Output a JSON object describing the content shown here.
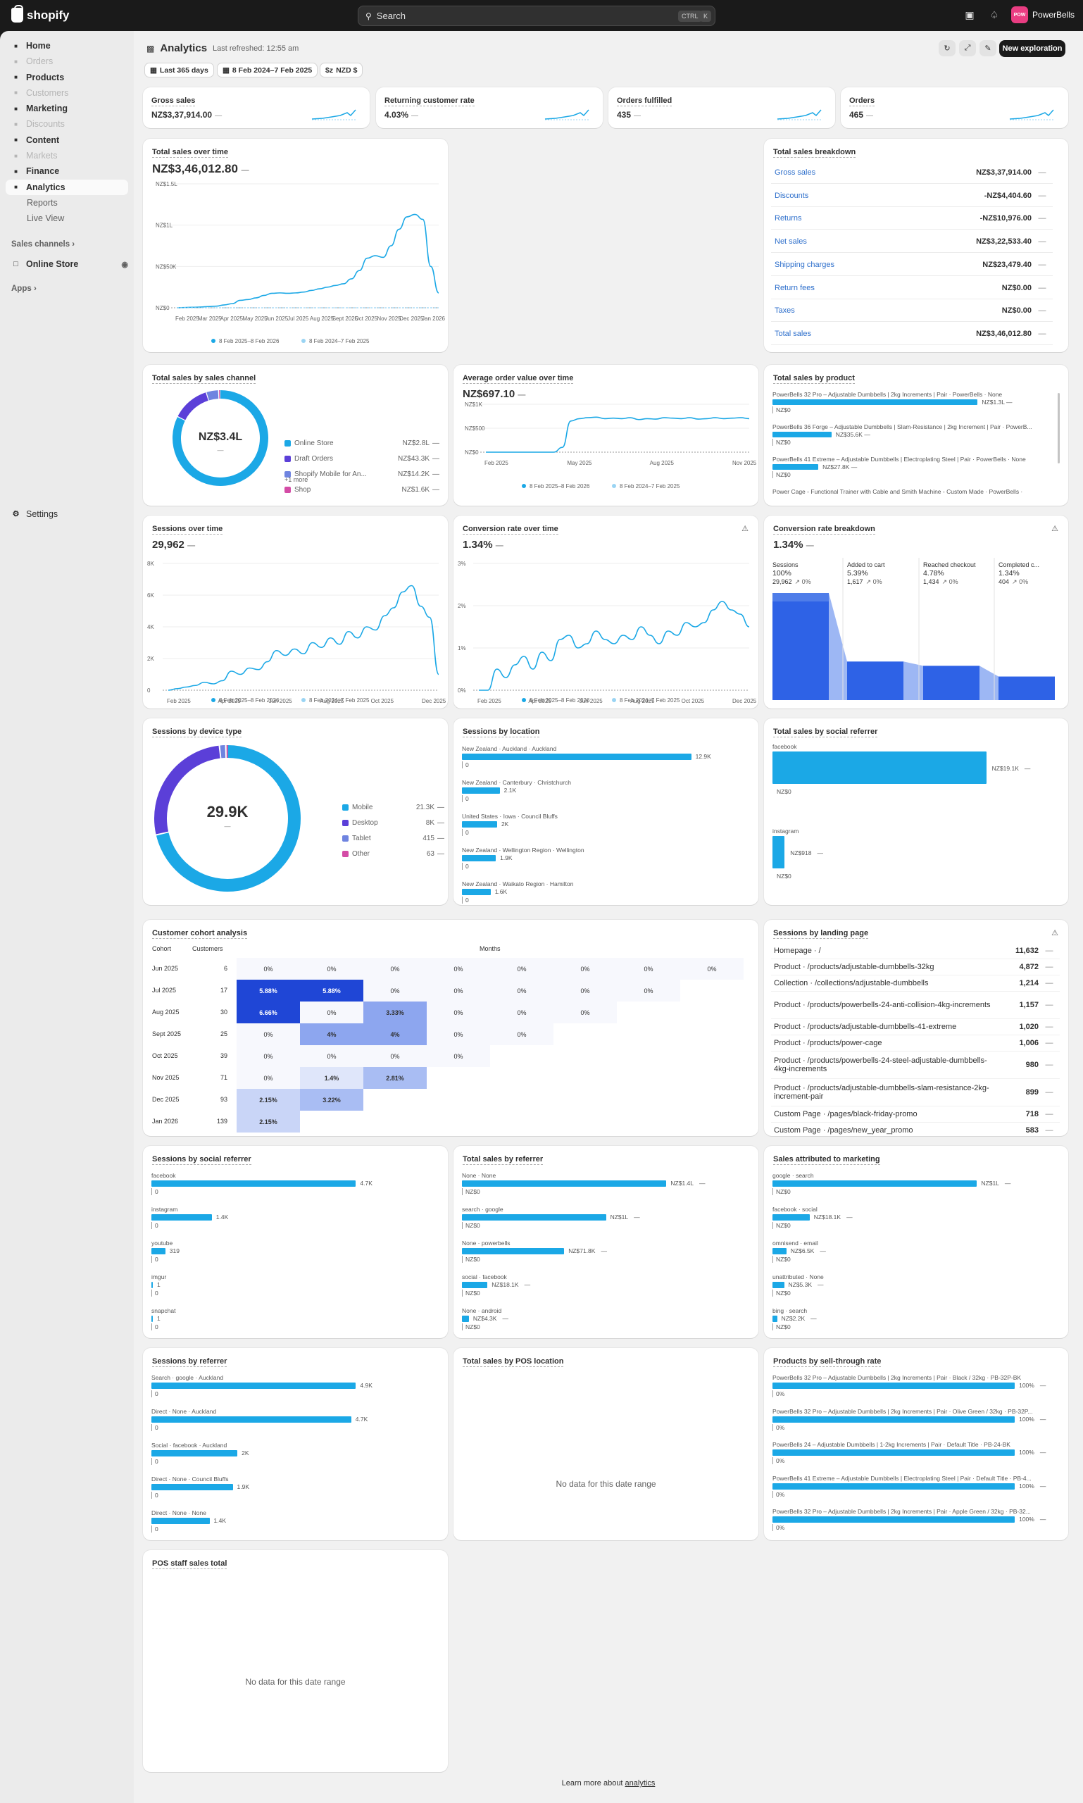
{
  "topbar": {
    "brand": "shopify",
    "search_placeholder": "Search",
    "kbd1": "CTRL",
    "kbd2": "K",
    "store_initials": "POW",
    "store_name": "PowerBells"
  },
  "sidebar": {
    "items": [
      {
        "label": "Home",
        "icon": "home-icon",
        "state": "normal"
      },
      {
        "label": "Orders",
        "icon": "orders-icon",
        "state": "dim"
      },
      {
        "label": "Products",
        "icon": "tag-icon",
        "state": "normal"
      },
      {
        "label": "Customers",
        "icon": "person-icon",
        "state": "dim"
      },
      {
        "label": "Marketing",
        "icon": "target-icon",
        "state": "normal"
      },
      {
        "label": "Discounts",
        "icon": "discount-icon",
        "state": "dim"
      },
      {
        "label": "Content",
        "icon": "content-icon",
        "state": "normal"
      },
      {
        "label": "Markets",
        "icon": "globe-icon",
        "state": "dim"
      },
      {
        "label": "Finance",
        "icon": "bank-icon",
        "state": "normal"
      },
      {
        "label": "Analytics",
        "icon": "chart-icon",
        "state": "active"
      },
      {
        "label": "Reports",
        "icon": "",
        "state": "sub"
      },
      {
        "label": "Live View",
        "icon": "",
        "state": "sub"
      }
    ],
    "sales_channels": "Sales channels",
    "online_store": "Online Store",
    "apps": "Apps",
    "settings": "Settings"
  },
  "header": {
    "title": "Analytics",
    "refreshed": "Last refreshed: 12:55 am",
    "chip_range": "Last 365 days",
    "chip_dates": "8 Feb 2024–7 Feb 2025",
    "chip_currency": "NZD $",
    "new_button": "New exploration"
  },
  "kpis": [
    {
      "title": "Gross sales",
      "value": "NZ$3,37,914.00"
    },
    {
      "title": "Returning customer rate",
      "value": "4.03%"
    },
    {
      "title": "Orders fulfilled",
      "value": "435"
    },
    {
      "title": "Orders",
      "value": "465"
    }
  ],
  "dash": "—",
  "legend_current": "8 Feb 2025–8 Feb 2026",
  "legend_previous": "8 Feb 2024–7 Feb 2025",
  "total_sales": {
    "title": "Total sales over time",
    "value": "NZ$3,46,012.80",
    "chart_data": {
      "type": "line",
      "yticks": [
        "NZ$1.5L",
        "NZ$1L",
        "NZ$50K",
        "NZ$0"
      ],
      "xticks": [
        "Feb 2025",
        "Mar 2025",
        "Apr 2025",
        "May 2025",
        "Jun 2025",
        "Jul 2025",
        "Aug 2025",
        "Sept 2025",
        "Oct 2025",
        "Nov 2025",
        "Dec 2025",
        "Jan 2026"
      ],
      "ylim": [
        0,
        150000
      ],
      "series": [
        {
          "name": "8 Feb 2025–8 Feb 2026",
          "values": [
            0,
            300,
            600,
            900,
            1500,
            2000,
            3500,
            5000,
            9000,
            10000,
            12000,
            15000,
            17500,
            18000,
            17500,
            18000,
            19000,
            21000,
            23000,
            25000,
            27000,
            29000,
            35000,
            45000,
            60000,
            63000,
            61000,
            75000,
            95000,
            110000,
            113000,
            107000,
            50000,
            18000
          ]
        },
        {
          "name": "8 Feb 2024–7 Feb 2025",
          "values": [
            0,
            0,
            0,
            0,
            0,
            0,
            0,
            0,
            0,
            0,
            0,
            0,
            0,
            0,
            0,
            0,
            0,
            0,
            0,
            0,
            0,
            0,
            0,
            0,
            0,
            0,
            0,
            0,
            0,
            0,
            0,
            0,
            0,
            0
          ]
        }
      ]
    }
  },
  "breakdown": {
    "title": "Total sales breakdown",
    "rows": [
      {
        "label": "Gross sales",
        "value": "NZ$3,37,914.00"
      },
      {
        "label": "Discounts",
        "value": "-NZ$4,404.60"
      },
      {
        "label": "Returns",
        "value": "-NZ$10,976.00"
      },
      {
        "label": "Net sales",
        "value": "NZ$3,22,533.40"
      },
      {
        "label": "Shipping charges",
        "value": "NZ$23,479.40"
      },
      {
        "label": "Return fees",
        "value": "NZ$0.00"
      },
      {
        "label": "Taxes",
        "value": "NZ$0.00"
      },
      {
        "label": "Total sales",
        "value": "NZ$3,46,012.80"
      }
    ]
  },
  "by_channel": {
    "title": "Total sales by sales channel",
    "center": "NZ$3.4L",
    "more": "+1 more",
    "chart_data": {
      "type": "pie",
      "series": [
        {
          "name": "Online Store",
          "label": "NZ$2.8L",
          "value": 280000,
          "color": "#1ba8e6"
        },
        {
          "name": "Draft Orders",
          "label": "NZ$43.3K",
          "value": 43300,
          "color": "#5b3fd8"
        },
        {
          "name": "Shopify Mobile for An...",
          "label": "NZ$14.2K",
          "value": 14200,
          "color": "#6f84e0"
        },
        {
          "name": "Shop",
          "label": "NZ$1.6K",
          "value": 1600,
          "color": "#d44ca6"
        }
      ]
    }
  },
  "aov": {
    "title": "Average order value over time",
    "value": "NZ$697.10",
    "chart_data": {
      "type": "line",
      "yticks": [
        "NZ$1K",
        "NZ$500",
        "NZ$0"
      ],
      "xticks": [
        "Feb 2025",
        "May 2025",
        "Aug 2025",
        "Nov 2025"
      ],
      "ylim": [
        0,
        1000
      ],
      "series": [
        {
          "name": "8 Feb 2025–8 Feb 2026",
          "values": [
            0,
            0,
            0,
            0,
            0,
            0,
            0,
            0,
            0,
            100,
            650,
            700,
            720,
            730,
            700,
            710,
            700,
            720,
            680,
            700,
            690,
            720,
            710,
            700,
            720,
            690,
            700,
            720,
            700,
            710,
            720,
            700
          ]
        }
      ]
    }
  },
  "by_product": {
    "title": "Total sales by product",
    "rows": [
      {
        "name": "PowerBells 32 Pro – Adjustable Dumbbells | 2kg Increments | Pair · PowerBells · None",
        "value": "NZ$1.3L",
        "frac": 0.94
      },
      {
        "name": "PowerBells 36 Forge – Adjustable Dumbbells | Slam-Resistance | 2kg Increment | Pair · PowerB...",
        "value": "NZ$35.6K",
        "frac": 0.27
      },
      {
        "name": "PowerBells 41 Extreme – Adjustable Dumbbells | Electroplating Steel | Pair · PowerBells · None",
        "value": "NZ$27.8K",
        "frac": 0.21
      },
      {
        "name": "Power Cage - Functional Trainer with Cable and Smith Machine - Custom Made · PowerBells ·",
        "value": "",
        "frac": 0
      }
    ],
    "zero": "NZ$0"
  },
  "sessions": {
    "title": "Sessions over time",
    "value": "29,962",
    "chart_data": {
      "type": "line",
      "yticks": [
        "8K",
        "6K",
        "4K",
        "2K",
        "0"
      ],
      "xticks": [
        "Feb 2025",
        "Apr 2025",
        "Jun 2025",
        "Aug 2025",
        "Oct 2025",
        "Dec 2025"
      ],
      "ylim": [
        0,
        8000
      ],
      "series": [
        {
          "name": "8 Feb 2025–8 Feb 2026",
          "values": [
            0,
            100,
            200,
            300,
            500,
            400,
            600,
            1200,
            1000,
            1400,
            1300,
            1800,
            2500,
            2200,
            2600,
            2300,
            3000,
            2700,
            3300,
            2900,
            3700,
            3300,
            4000,
            3800,
            4700,
            5200,
            6200,
            6600,
            5300,
            4600,
            1000
          ]
        }
      ]
    }
  },
  "conv": {
    "title": "Conversion rate over time",
    "value": "1.34%",
    "chart_data": {
      "type": "line",
      "yticks": [
        "3%",
        "2%",
        "1%",
        "0%"
      ],
      "xticks": [
        "Feb 2025",
        "Apr 2025",
        "Jun 2025",
        "Aug 2025",
        "Oct 2025",
        "Dec 2025"
      ],
      "ylim": [
        0,
        3
      ],
      "series": [
        {
          "name": "8 Feb 2025–8 Feb 2026",
          "values": [
            0,
            0,
            0.5,
            0.3,
            0.6,
            0.8,
            0.5,
            0.9,
            0.7,
            1.2,
            1.3,
            1.0,
            1.1,
            1.4,
            1.2,
            1.1,
            1.3,
            1.2,
            1.5,
            1.3,
            1.1,
            1.4,
            1.3,
            1.6,
            1.5,
            1.6,
            1.9,
            2.1,
            1.9,
            1.8,
            1.5
          ]
        }
      ]
    }
  },
  "funnel": {
    "title": "Conversion rate breakdown",
    "steps": [
      {
        "name": "Sessions",
        "pct": "100%",
        "count": "29,962",
        "delta": "0%"
      },
      {
        "name": "Added to cart",
        "pct": "5.39%",
        "count": "1,617",
        "delta": "0%"
      },
      {
        "name": "Reached checkout",
        "pct": "4.78%",
        "count": "1,434",
        "delta": "0%"
      },
      {
        "name": "Completed c...",
        "pct": "1.34%",
        "count": "404",
        "delta": "0%"
      }
    ]
  },
  "device": {
    "title": "Sessions by device type",
    "center": "29.9K",
    "chart_data": {
      "type": "pie",
      "series": [
        {
          "name": "Mobile",
          "label": "21.3K",
          "value": 21300,
          "color": "#1ba8e6"
        },
        {
          "name": "Desktop",
          "label": "8K",
          "value": 8000,
          "color": "#5b3fd8"
        },
        {
          "name": "Tablet",
          "label": "415",
          "value": 415,
          "color": "#6f84e0"
        },
        {
          "name": "Other",
          "label": "63",
          "value": 63,
          "color": "#d44ca6"
        }
      ]
    }
  },
  "location": {
    "title": "Sessions by location",
    "rows": [
      {
        "name": "New Zealand · Auckland · Auckland",
        "value": "12.9K",
        "frac": 0.88
      },
      {
        "name": "New Zealand · Canterbury · Christchurch",
        "value": "2.1K",
        "frac": 0.145
      },
      {
        "name": "United States · Iowa · Council Bluffs",
        "value": "2K",
        "frac": 0.135
      },
      {
        "name": "New Zealand · Wellington Region · Wellington",
        "value": "1.9K",
        "frac": 0.13
      },
      {
        "name": "New Zealand · Waikato Region · Hamilton",
        "value": "1.6K",
        "frac": 0.11
      }
    ],
    "zero": "0"
  },
  "social_sales": {
    "title": "Total sales by social referrer",
    "rows": [
      {
        "name": "facebook",
        "value": "NZ$19.1K",
        "frac": 0.88
      },
      {
        "name": "instagram",
        "value": "NZ$918",
        "frac": 0.05
      }
    ],
    "zero": "NZ$0"
  },
  "cohort": {
    "title": "Customer cohort analysis",
    "col_cohort": "Cohort",
    "col_customers": "Customers",
    "col_months": "Months",
    "rows": [
      {
        "cohort": "Jun 2025",
        "customers": "6",
        "cells": [
          "0%",
          "0%",
          "0%",
          "0%",
          "0%",
          "0%",
          "0%",
          "0%"
        ]
      },
      {
        "cohort": "Jul 2025",
        "customers": "17",
        "cells": [
          "5.88%",
          "5.88%",
          "0%",
          "0%",
          "0%",
          "0%",
          "0%"
        ]
      },
      {
        "cohort": "Aug 2025",
        "customers": "30",
        "cells": [
          "6.66%",
          "0%",
          "3.33%",
          "0%",
          "0%",
          "0%"
        ]
      },
      {
        "cohort": "Sept 2025",
        "customers": "25",
        "cells": [
          "0%",
          "4%",
          "4%",
          "0%",
          "0%"
        ]
      },
      {
        "cohort": "Oct 2025",
        "customers": "39",
        "cells": [
          "0%",
          "0%",
          "0%",
          "0%"
        ]
      },
      {
        "cohort": "Nov 2025",
        "customers": "71",
        "cells": [
          "0%",
          "1.4%",
          "2.81%"
        ]
      },
      {
        "cohort": "Dec 2025",
        "customers": "93",
        "cells": [
          "2.15%",
          "3.22%"
        ]
      },
      {
        "cohort": "Jan 2026",
        "customers": "139",
        "cells": [
          "2.15%"
        ]
      }
    ]
  },
  "landing": {
    "title": "Sessions by landing page",
    "rows": [
      {
        "name": "Homepage · /",
        "value": "11,632"
      },
      {
        "name": "Product · /products/adjustable-dumbbells-32kg",
        "value": "4,872"
      },
      {
        "name": "Collection · /collections/adjustable-dumbbells",
        "value": "1,214"
      },
      {
        "name": "Product · /products/powerbells-24-anti-collision-4kg-increments",
        "value": "1,157"
      },
      {
        "name": "Product · /products/adjustable-dumbbells-41-extreme",
        "value": "1,020"
      },
      {
        "name": "Product · /products/power-cage",
        "value": "1,006"
      },
      {
        "name": "Product · /products/powerbells-24-steel-adjustable-dumbbells-4kg-increments",
        "value": "980"
      },
      {
        "name": "Product · /products/adjustable-dumbbells-slam-resistance-2kg-increment-pair",
        "value": "899"
      },
      {
        "name": "Custom Page · /pages/black-friday-promo",
        "value": "718"
      },
      {
        "name": "Custom Page · /pages/new_year_promo",
        "value": "583"
      }
    ]
  },
  "social_sessions": {
    "title": "Sessions by social referrer",
    "rows": [
      {
        "name": "facebook",
        "value": "4.7K",
        "frac": 0.88
      },
      {
        "name": "instagram",
        "value": "1.4K",
        "frac": 0.26
      },
      {
        "name": "youtube",
        "value": "319",
        "frac": 0.06
      },
      {
        "name": "imgur",
        "value": "1",
        "frac": 0.003
      },
      {
        "name": "snapchat",
        "value": "1",
        "frac": 0.003
      }
    ],
    "zero": "0"
  },
  "referrer_sales": {
    "title": "Total sales by referrer",
    "rows": [
      {
        "name": "None · None",
        "value": "NZ$1.4L",
        "frac": 0.88
      },
      {
        "name": "search · google",
        "value": "NZ$1L",
        "frac": 0.62
      },
      {
        "name": "None · powerbells",
        "value": "NZ$71.8K",
        "frac": 0.44
      },
      {
        "name": "social · facebook",
        "value": "NZ$18.1K",
        "frac": 0.11
      },
      {
        "name": "None · android",
        "value": "NZ$4.3K",
        "frac": 0.03
      }
    ],
    "zero": "NZ$0"
  },
  "marketing": {
    "title": "Sales attributed to marketing",
    "rows": [
      {
        "name": "google · search",
        "value": "NZ$1L",
        "frac": 0.88
      },
      {
        "name": "facebook · social",
        "value": "NZ$18.1K",
        "frac": 0.16
      },
      {
        "name": "omnisend · email",
        "value": "NZ$6.5K",
        "frac": 0.06
      },
      {
        "name": "unattributed · None",
        "value": "NZ$5.3K",
        "frac": 0.05
      },
      {
        "name": "bing · search",
        "value": "NZ$2.2K",
        "frac": 0.02
      }
    ],
    "zero": "NZ$0"
  },
  "referrer_sessions": {
    "title": "Sessions by referrer",
    "rows": [
      {
        "name": "Search · google · Auckland",
        "value": "4.9K",
        "frac": 0.88
      },
      {
        "name": "Direct · None · Auckland",
        "value": "4.7K",
        "frac": 0.86
      },
      {
        "name": "Social · facebook · Auckland",
        "value": "2K",
        "frac": 0.37
      },
      {
        "name": "Direct · None · Council Bluffs",
        "value": "1.9K",
        "frac": 0.35
      },
      {
        "name": "Direct · None · None",
        "value": "1.4K",
        "frac": 0.25
      }
    ],
    "zero": "0"
  },
  "pos_location": {
    "title": "Total sales by POS location",
    "empty": "No data for this date range"
  },
  "sell_through": {
    "title": "Products by sell-through rate",
    "rows": [
      {
        "name": "PowerBells 32 Pro – Adjustable Dumbbells | 2kg Increments | Pair · Black / 32kg · PB-32P-BK",
        "value": "100%",
        "frac": 0.93
      },
      {
        "name": "PowerBells 32 Pro – Adjustable Dumbbells | 2kg Increments | Pair · Olive Green / 32kg · PB-32P...",
        "value": "100%",
        "frac": 0.93
      },
      {
        "name": "PowerBells 24 – Adjustable Dumbbells | 1-2kg Increments | Pair · Default Title · PB-24-BK",
        "value": "100%",
        "frac": 0.93
      },
      {
        "name": "PowerBells 41 Extreme – Adjustable Dumbbells | Electroplating Steel | Pair · Default Title · PB-4...",
        "value": "100%",
        "frac": 0.93
      },
      {
        "name": "PowerBells 32 Pro – Adjustable Dumbbells | 2kg Increments | Pair · Apple Green / 32kg · PB-32...",
        "value": "100%",
        "frac": 0.93
      }
    ],
    "zero": "0%"
  },
  "pos_staff": {
    "title": "POS staff sales total",
    "empty": "No data for this date range"
  },
  "footer": {
    "text": "Learn more about ",
    "link": "analytics"
  }
}
